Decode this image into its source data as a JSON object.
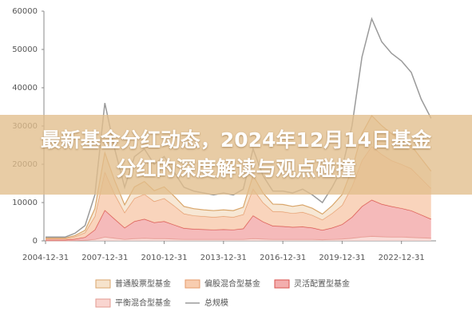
{
  "chart_data": {
    "type": "area",
    "title": "最新基金分红动态，2024年12月14日基金分红的深度解读与观点碰撞",
    "x": [
      "2004-12-31",
      "2005-06-30",
      "2005-12-31",
      "2006-06-30",
      "2006-12-31",
      "2007-06-30",
      "2007-12-31",
      "2008-06-30",
      "2008-12-31",
      "2009-06-30",
      "2009-12-31",
      "2010-06-30",
      "2010-12-31",
      "2011-06-30",
      "2011-12-31",
      "2012-06-30",
      "2012-12-31",
      "2013-06-30",
      "2013-12-31",
      "2014-06-30",
      "2014-12-31",
      "2015-06-30",
      "2015-12-31",
      "2016-06-30",
      "2016-12-31",
      "2017-06-30",
      "2017-12-31",
      "2018-06-30",
      "2018-12-31",
      "2019-06-30",
      "2019-12-31",
      "2020-06-30",
      "2020-12-31",
      "2021-06-30",
      "2021-12-31",
      "2022-06-30",
      "2022-12-31",
      "2023-06-30",
      "2023-12-31",
      "2024-06-30"
    ],
    "series": [
      {
        "name": "平衡混合型基金",
        "style": "area",
        "color": "#f9d5d0",
        "stroke": "#e39a90",
        "values": [
          50,
          50,
          50,
          100,
          150,
          400,
          1000,
          700,
          400,
          600,
          700,
          600,
          600,
          500,
          400,
          400,
          400,
          400,
          400,
          400,
          400,
          600,
          500,
          400,
          400,
          400,
          400,
          400,
          300,
          400,
          500,
          700,
          1000,
          1200,
          1100,
          1000,
          1000,
          900,
          800,
          700
        ]
      },
      {
        "name": "灵活配置型基金",
        "style": "area",
        "color": "#f3aeae",
        "stroke": "#d9534f",
        "values": [
          200,
          200,
          200,
          400,
          800,
          2500,
          7000,
          5000,
          3000,
          4500,
          5000,
          4200,
          4500,
          3700,
          2900,
          2700,
          2600,
          2500,
          2600,
          2500,
          2800,
          6000,
          4500,
          3500,
          3400,
          3200,
          3300,
          3000,
          2500,
          3000,
          3800,
          5500,
          8000,
          9500,
          8500,
          8000,
          7500,
          7000,
          6000,
          5000
        ]
      },
      {
        "name": "偏股混合型基金",
        "style": "area",
        "color": "#f8cdb0",
        "stroke": "#e59a6a",
        "values": [
          300,
          300,
          300,
          600,
          1200,
          3500,
          10000,
          6500,
          4000,
          6000,
          6500,
          5500,
          6000,
          5000,
          3800,
          3500,
          3400,
          3300,
          3400,
          3300,
          3700,
          7000,
          5000,
          3800,
          3800,
          3600,
          3800,
          3300,
          2700,
          3800,
          5000,
          8000,
          12000,
          14000,
          13000,
          12000,
          11500,
          11000,
          9500,
          8000
        ]
      },
      {
        "name": "普通股票型基金",
        "style": "area",
        "color": "#f6e3cc",
        "stroke": "#d9a66b",
        "values": [
          200,
          200,
          200,
          300,
          600,
          2000,
          5000,
          3500,
          2000,
          3000,
          3300,
          2800,
          3000,
          2500,
          1900,
          1800,
          1700,
          1700,
          1700,
          1700,
          1900,
          3500,
          2500,
          1900,
          1900,
          1800,
          1900,
          1800,
          1500,
          2000,
          2800,
          4500,
          7000,
          8000,
          7500,
          7000,
          6500,
          6000,
          5200,
          4500
        ]
      },
      {
        "name": "总规模",
        "style": "line",
        "color": "#9a9a9a",
        "values": [
          1000,
          1000,
          1000,
          2000,
          4000,
          12000,
          36000,
          24000,
          14000,
          22000,
          24000,
          20000,
          22000,
          18000,
          14000,
          13000,
          12500,
          12000,
          12500,
          12000,
          13500,
          24000,
          17000,
          13000,
          13000,
          12500,
          13500,
          12000,
          10000,
          14000,
          19000,
          30000,
          48000,
          58000,
          52000,
          49000,
          47000,
          44000,
          37000,
          32000
        ]
      }
    ],
    "legend_order": [
      3,
      2,
      1,
      0,
      4
    ],
    "xlim": [
      "2004-12-01",
      "2024-09-30"
    ],
    "xticks": [
      "2004-12-31",
      "2007-12-31",
      "2010-12-31",
      "2013-12-31",
      "2016-12-31",
      "2019-12-31",
      "2022-12-31"
    ],
    "ylim": [
      0,
      60000
    ],
    "yticks": [
      0,
      10000,
      20000,
      30000,
      40000,
      50000,
      60000
    ]
  }
}
